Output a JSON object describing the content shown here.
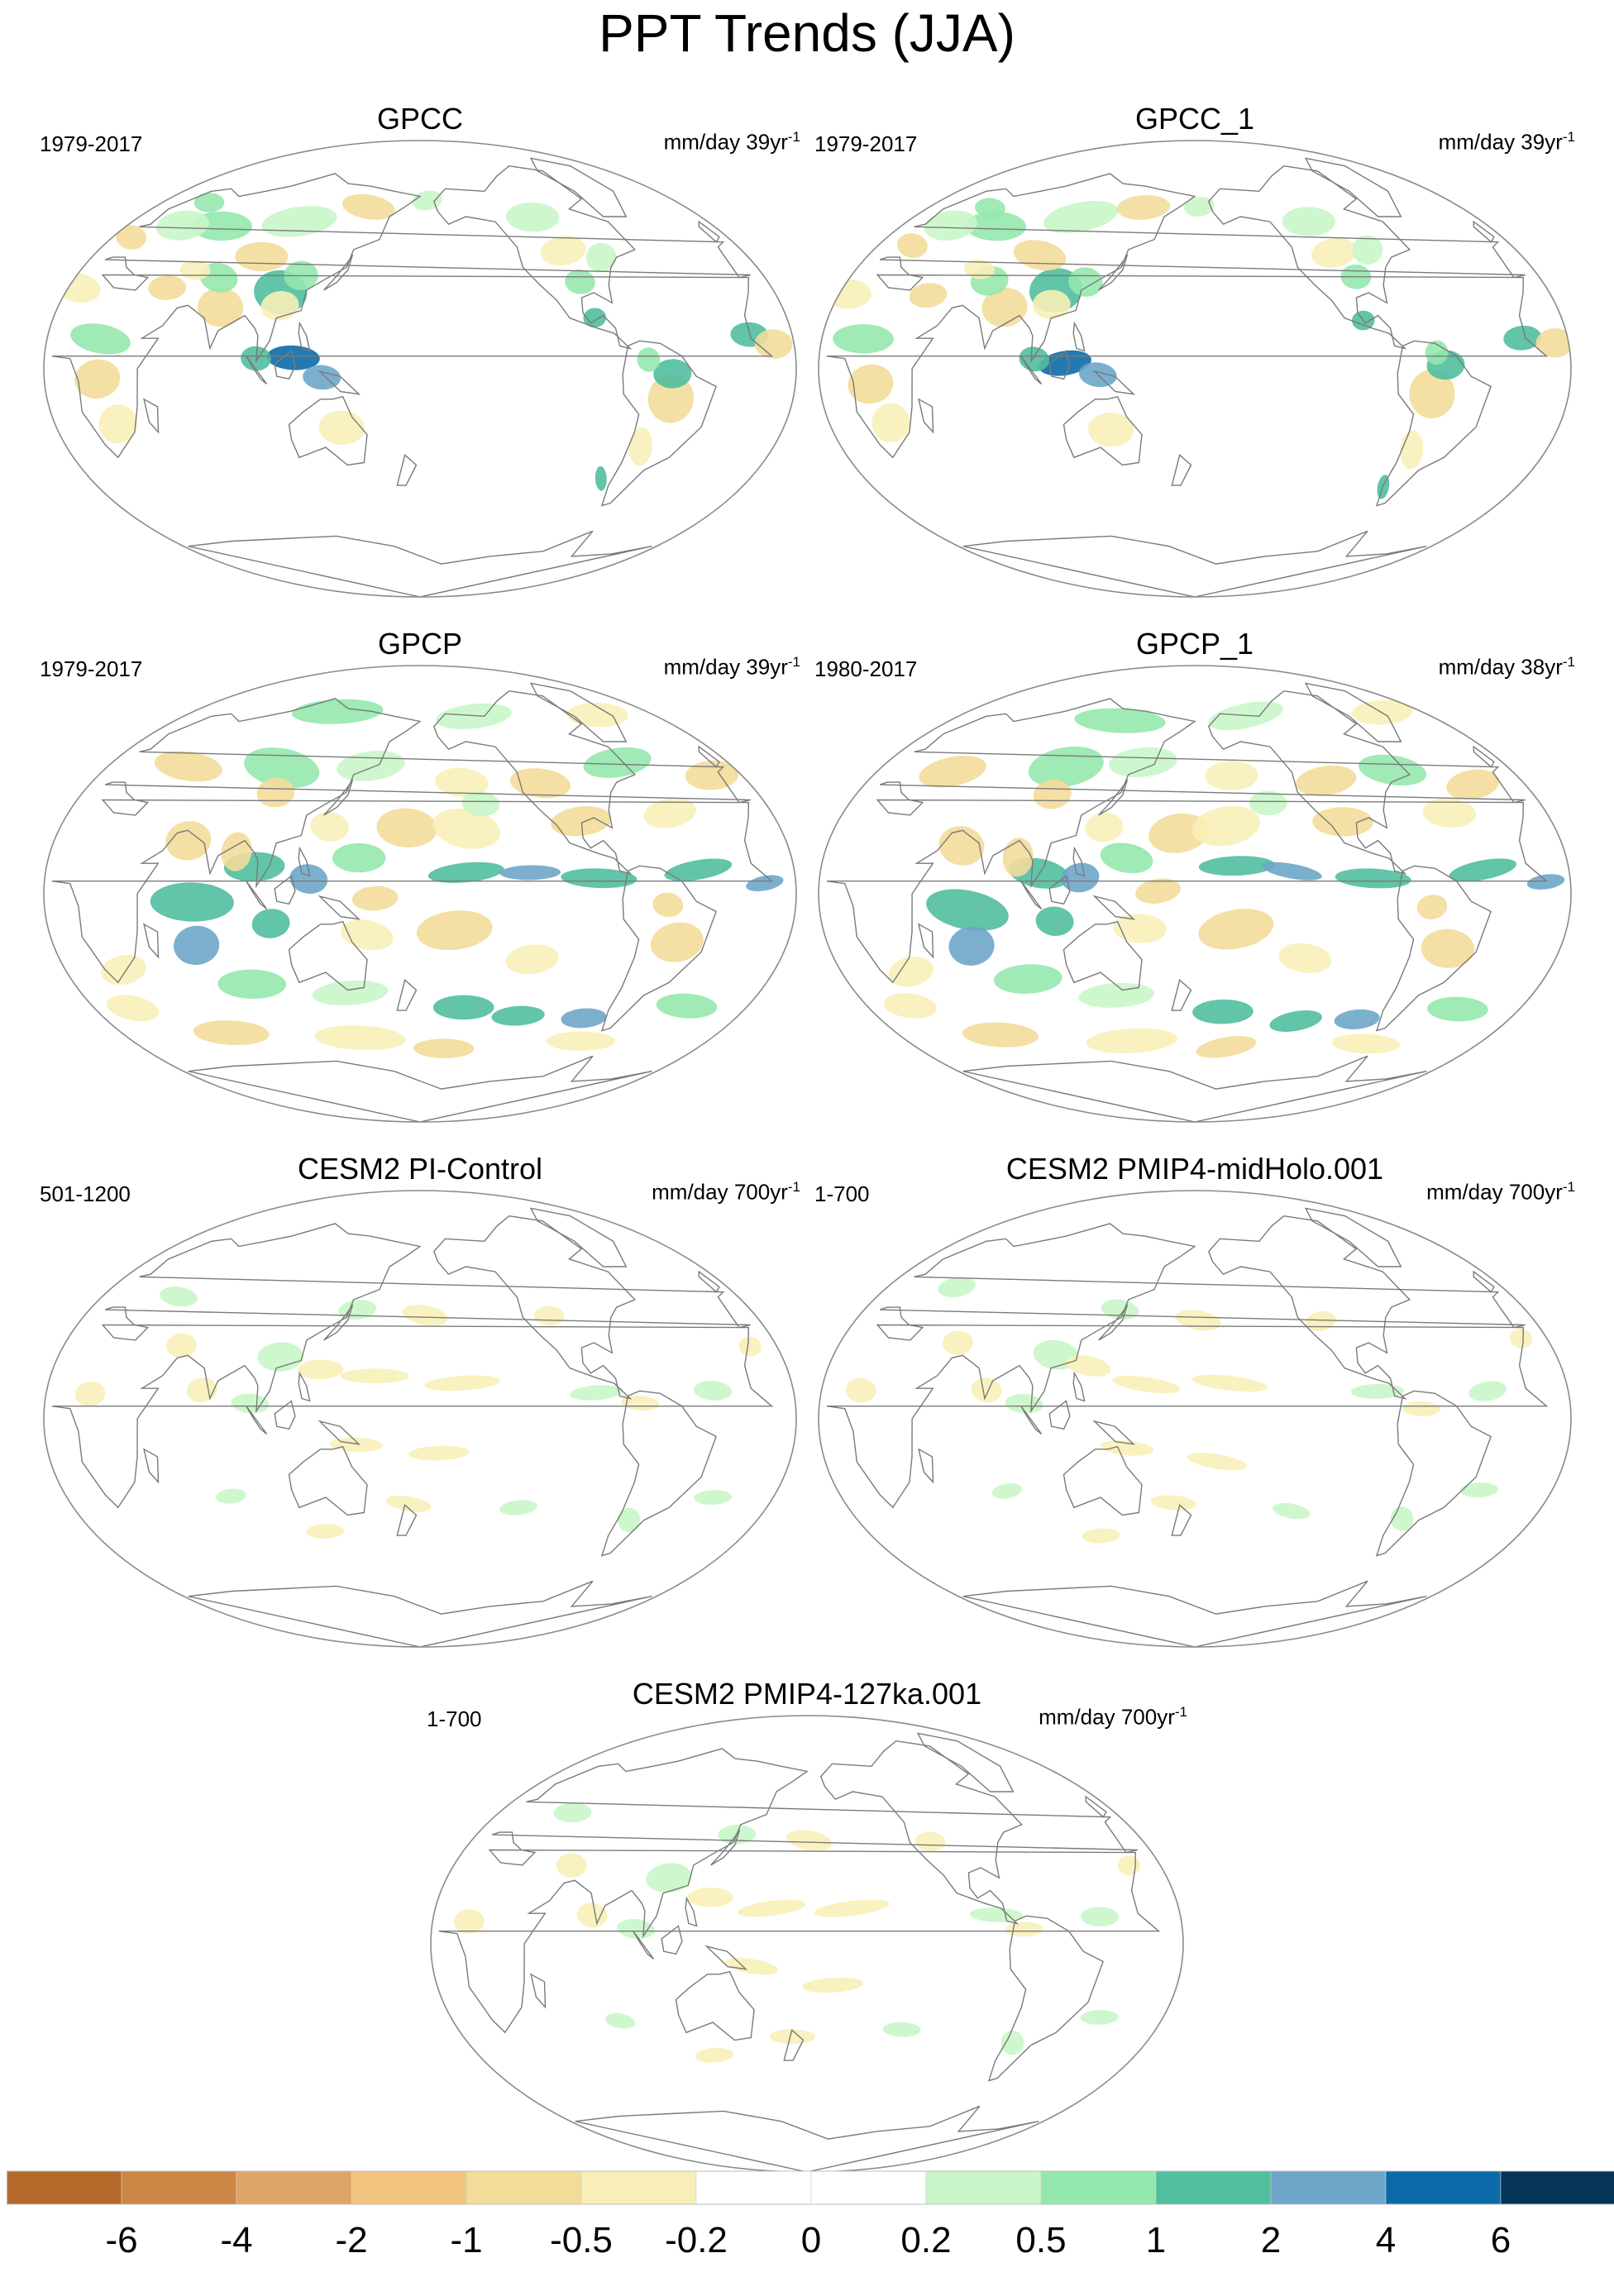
{
  "title": "PPT Trends (JJA)",
  "colors": {
    "land": "#ffffff",
    "coast": "#7a7a7a",
    "frame": "#8a8a8a"
  },
  "panels": [
    {
      "id": "gpcc",
      "title": "GPCC",
      "period": "1979-2017",
      "units": "mm/day 39yr",
      "units_exp": "-1",
      "coverage": "land",
      "intensity": 1.0
    },
    {
      "id": "gpcc1",
      "title": "GPCC_1",
      "period": "1979-2017",
      "units": "mm/day 39yr",
      "units_exp": "-1",
      "coverage": "land",
      "intensity": 1.0
    },
    {
      "id": "gpcp",
      "title": "GPCP",
      "period": "1979-2017",
      "units": "mm/day 39yr",
      "units_exp": "-1",
      "coverage": "global",
      "intensity": 1.0
    },
    {
      "id": "gpcp1",
      "title": "GPCP_1",
      "period": "1980-2017",
      "units": "mm/day 38yr",
      "units_exp": "-1",
      "coverage": "global",
      "intensity": 1.0
    },
    {
      "id": "picontrol",
      "title": "CESM2 PI-Control",
      "period": "501-1200",
      "units": "mm/day 700yr",
      "units_exp": "-1",
      "coverage": "weak",
      "intensity": 0.5
    },
    {
      "id": "midholo",
      "title": "CESM2 PMIP4-midHolo.001",
      "period": "1-700",
      "units": "mm/day 700yr",
      "units_exp": "-1",
      "coverage": "weak",
      "intensity": 0.5
    },
    {
      "id": "ka127",
      "title": "CESM2 PMIP4-127ka.001",
      "period": "1-700",
      "units": "mm/day 700yr",
      "units_exp": "-1",
      "coverage": "weak",
      "intensity": 0.5
    }
  ],
  "colorbar": {
    "colors": [
      "#b5692a",
      "#cc8746",
      "#dfa566",
      "#f1c57f",
      "#f3dc9a",
      "#f8efb8",
      "#ffffff",
      "#ffffff",
      "#c9f6c9",
      "#95e8ad",
      "#51be9e",
      "#6ea6c9",
      "#0c6aa8",
      "#053459"
    ],
    "labels": [
      "-6",
      "-4",
      "-2",
      "-1",
      "-0.5",
      "-0.2",
      "0",
      "0.2",
      "0.5",
      "1",
      "2",
      "4",
      "6"
    ]
  }
}
